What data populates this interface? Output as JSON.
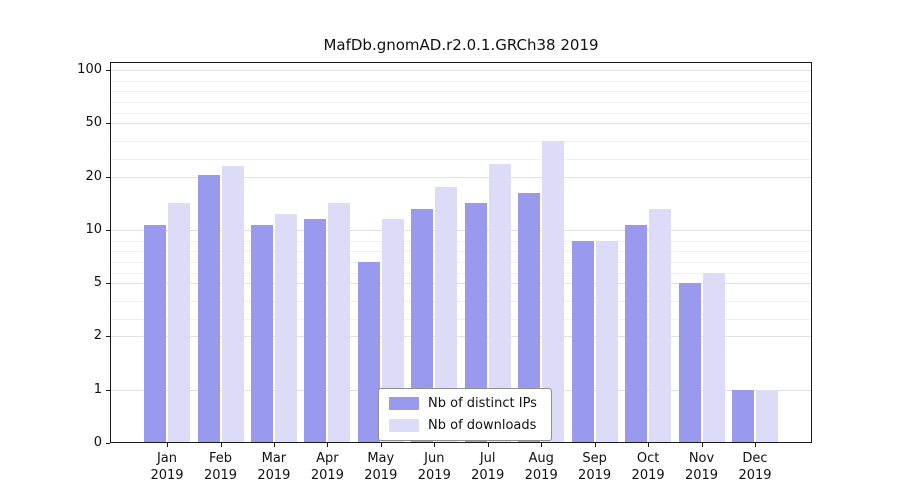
{
  "chart_data": {
    "type": "bar",
    "title": "MafDb.gnomAD.r2.0.1.GRCh38 2019",
    "year_label": "2019",
    "categories": [
      "Jan",
      "Feb",
      "Mar",
      "Apr",
      "May",
      "Jun",
      "Jul",
      "Aug",
      "Sep",
      "Oct",
      "Nov",
      "Dec"
    ],
    "series": [
      {
        "name": "Nb of distinct IPs",
        "color": "#9999ee",
        "values": [
          11,
          21,
          11,
          12,
          7,
          14,
          15,
          17,
          9,
          11,
          5,
          1
        ]
      },
      {
        "name": "Nb of downloads",
        "color": "#dcdcf8",
        "values": [
          15,
          26,
          13,
          15,
          12,
          18,
          27,
          40,
          9,
          14,
          6,
          1
        ]
      }
    ],
    "yticks": [
      0,
      1,
      2,
      5,
      10,
      20,
      50,
      100
    ],
    "minor_yticks": [
      3,
      4,
      6,
      7,
      8,
      9,
      30,
      40,
      60,
      70,
      80,
      90
    ],
    "yscale": "log-like, labeled ticks evenly spaced",
    "ylim": [
      0,
      100
    ],
    "grid": "horizontal",
    "legend_position": "bottom-center-inside"
  }
}
